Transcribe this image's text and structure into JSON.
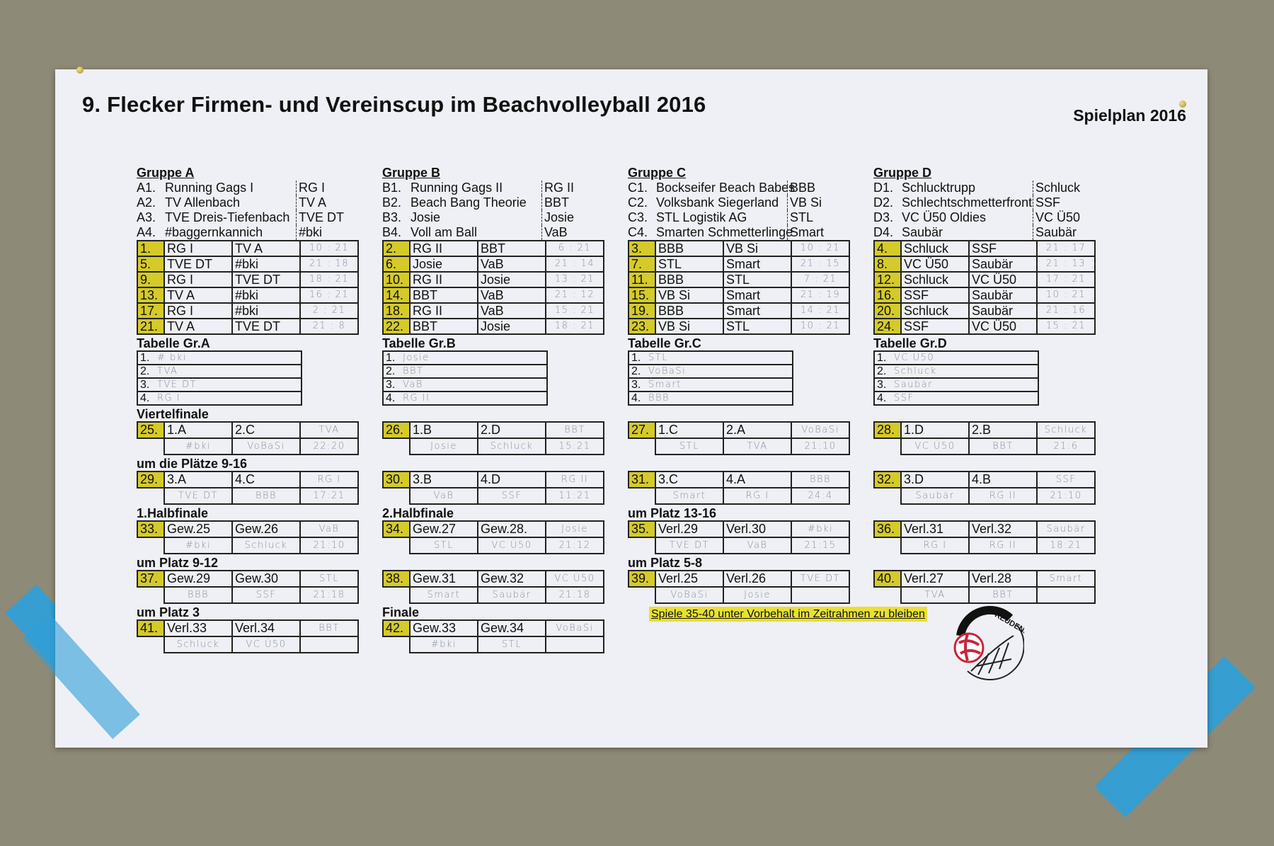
{
  "title": "9. Flecker Firmen- und Vereinscup im Beachvolleyball 2016",
  "subtitle": "Spielplan 2016",
  "colors": {
    "highlight": "#d4ca2a",
    "tape": "#2f9fd8",
    "background": "#8e8a78"
  },
  "groups": [
    {
      "name": "Gruppe A",
      "teams": [
        {
          "code": "A1.",
          "name": "Running Gags I",
          "short": "RG I"
        },
        {
          "code": "A2.",
          "name": "TV Allenbach",
          "short": "TV A"
        },
        {
          "code": "A3.",
          "name": "TVE Dreis-Tiefenbach",
          "short": "TVE DT"
        },
        {
          "code": "A4.",
          "name": "#baggernkannich",
          "short": "#bki"
        }
      ],
      "matches": [
        {
          "no": "1.",
          "t1": "RG I",
          "t2": "TV A",
          "score": "10 : 21"
        },
        {
          "no": "5.",
          "t1": "TVE DT",
          "t2": "#bki",
          "score": "21 : 18"
        },
        {
          "no": "9.",
          "t1": "RG I",
          "t2": "TVE DT",
          "score": "18 : 21"
        },
        {
          "no": "13.",
          "t1": "TV A",
          "t2": "#bki",
          "score": "16 : 21"
        },
        {
          "no": "17.",
          "t1": "RG I",
          "t2": "#bki",
          "score": "2 : 21"
        },
        {
          "no": "21.",
          "t1": "TV A",
          "t2": "TVE DT",
          "score": "21 : 8"
        }
      ],
      "table_title": "Tabelle Gr.A",
      "standings": [
        {
          "rank": "1.",
          "team": "# bki"
        },
        {
          "rank": "2.",
          "team": "TVA"
        },
        {
          "rank": "3.",
          "team": "TVE DT"
        },
        {
          "rank": "4.",
          "team": "RG I"
        }
      ]
    },
    {
      "name": "Gruppe B",
      "teams": [
        {
          "code": "B1.",
          "name": "Running Gags II",
          "short": "RG II"
        },
        {
          "code": "B2.",
          "name": "Beach Bang Theorie",
          "short": "BBT"
        },
        {
          "code": "B3.",
          "name": "Josie",
          "short": "Josie"
        },
        {
          "code": "B4.",
          "name": "Voll am Ball",
          "short": "VaB"
        }
      ],
      "matches": [
        {
          "no": "2.",
          "t1": "RG II",
          "t2": "BBT",
          "score": "6 : 21"
        },
        {
          "no": "6.",
          "t1": "Josie",
          "t2": "VaB",
          "score": "21 : 14"
        },
        {
          "no": "10.",
          "t1": "RG II",
          "t2": "Josie",
          "score": "13 : 21"
        },
        {
          "no": "14.",
          "t1": "BBT",
          "t2": "VaB",
          "score": "21 : 12"
        },
        {
          "no": "18.",
          "t1": "RG II",
          "t2": "VaB",
          "score": "15 : 21"
        },
        {
          "no": "22.",
          "t1": "BBT",
          "t2": "Josie",
          "score": "18 : 21"
        }
      ],
      "table_title": "Tabelle Gr.B",
      "standings": [
        {
          "rank": "1.",
          "team": "Josie"
        },
        {
          "rank": "2.",
          "team": "BBT"
        },
        {
          "rank": "3.",
          "team": "VaB"
        },
        {
          "rank": "4.",
          "team": "RG II"
        }
      ]
    },
    {
      "name": "Gruppe C",
      "teams": [
        {
          "code": "C1.",
          "name": "Bockseifer Beach Babes",
          "short": "BBB"
        },
        {
          "code": "C2.",
          "name": "Volksbank Siegerland",
          "short": "VB Si"
        },
        {
          "code": "C3.",
          "name": "STL Logistik AG",
          "short": "STL"
        },
        {
          "code": "C4.",
          "name": "Smarten Schmetterlinge",
          "short": "Smart"
        }
      ],
      "matches": [
        {
          "no": "3.",
          "t1": "BBB",
          "t2": "VB Si",
          "score": "10 : 21"
        },
        {
          "no": "7.",
          "t1": "STL",
          "t2": "Smart",
          "score": "21 : 15"
        },
        {
          "no": "11.",
          "t1": "BBB",
          "t2": "STL",
          "score": "7 : 21"
        },
        {
          "no": "15.",
          "t1": "VB Si",
          "t2": "Smart",
          "score": "21 : 19"
        },
        {
          "no": "19.",
          "t1": "BBB",
          "t2": "Smart",
          "score": "14 : 21"
        },
        {
          "no": "23.",
          "t1": "VB Si",
          "t2": "STL",
          "score": "10 : 21"
        }
      ],
      "table_title": "Tabelle Gr.C",
      "standings": [
        {
          "rank": "1.",
          "team": "STL"
        },
        {
          "rank": "2.",
          "team": "VoBaSi"
        },
        {
          "rank": "3.",
          "team": "Smart"
        },
        {
          "rank": "4.",
          "team": "BBB"
        }
      ]
    },
    {
      "name": "Gruppe D",
      "teams": [
        {
          "code": "D1.",
          "name": "Schlucktrupp",
          "short": "Schluck"
        },
        {
          "code": "D2.",
          "name": "Schlechtschmetterfront",
          "short": "SSF"
        },
        {
          "code": "D3.",
          "name": "VC Ü50 Oldies",
          "short": "VC Ü50"
        },
        {
          "code": "D4.",
          "name": "Saubär",
          "short": "Saubär"
        }
      ],
      "matches": [
        {
          "no": "4.",
          "t1": "Schluck",
          "t2": "SSF",
          "score": "21 : 17"
        },
        {
          "no": "8.",
          "t1": "VC Ü50",
          "t2": "Saubär",
          "score": "21 : 13"
        },
        {
          "no": "12.",
          "t1": "Schluck",
          "t2": "VC Ü50",
          "score": "17 : 21"
        },
        {
          "no": "16.",
          "t1": "SSF",
          "t2": "Saubär",
          "score": "10 : 21"
        },
        {
          "no": "20.",
          "t1": "Schluck",
          "t2": "Saubär",
          "score": "21 : 16"
        },
        {
          "no": "24.",
          "t1": "SSF",
          "t2": "VC Ü50",
          "score": "15 : 21"
        }
      ],
      "table_title": "Tabelle Gr.D",
      "standings": [
        {
          "rank": "1.",
          "team": "VC Ü50"
        },
        {
          "rank": "2.",
          "team": "Schluck"
        },
        {
          "rank": "3.",
          "team": "Saubär"
        },
        {
          "rank": "4.",
          "team": "SSF"
        }
      ]
    }
  ],
  "knockout_rows": [
    {
      "matches": [
        {
          "label": "Viertelfinale",
          "no": "25.",
          "slot1": "1.A",
          "slot2": "2.C",
          "winner": "TVA",
          "team1": "#bki",
          "team2": "VoBaSi",
          "score": "22:20"
        },
        {
          "label": "",
          "no": "26.",
          "slot1": "1.B",
          "slot2": "2.D",
          "winner": "BBT",
          "team1": "Josie",
          "team2": "Schluck",
          "score": "15:21"
        },
        {
          "label": "",
          "no": "27.",
          "slot1": "1.C",
          "slot2": "2.A",
          "winner": "VoBaSi",
          "team1": "STL",
          "team2": "TVA",
          "score": "21:10"
        },
        {
          "label": "",
          "no": "28.",
          "slot1": "1.D",
          "slot2": "2.B",
          "winner": "Schluck",
          "team1": "VC Ü50",
          "team2": "BBT",
          "score": "21:6"
        }
      ]
    },
    {
      "matches": [
        {
          "label": "um die Plätze 9-16",
          "no": "29.",
          "slot1": "3.A",
          "slot2": "4.C",
          "winner": "RG I",
          "team1": "TVE DT",
          "team2": "BBB",
          "score": "17:21"
        },
        {
          "label": "",
          "no": "30.",
          "slot1": "3.B",
          "slot2": "4.D",
          "winner": "RG II",
          "team1": "VaB",
          "team2": "SSF",
          "score": "11:21"
        },
        {
          "label": "",
          "no": "31.",
          "slot1": "3.C",
          "slot2": "4.A",
          "winner": "BBB",
          "team1": "Smart",
          "team2": "RG I",
          "score": "24:4"
        },
        {
          "label": "",
          "no": "32.",
          "slot1": "3.D",
          "slot2": "4.B",
          "winner": "SSF",
          "team1": "Saubär",
          "team2": "RG II",
          "score": "21:10"
        }
      ]
    },
    {
      "matches": [
        {
          "label": "1.Halbfinale",
          "no": "33.",
          "slot1": "Gew.25",
          "slot2": "Gew.26",
          "winner": "VaB",
          "team1": "#bki",
          "team2": "Schluck",
          "score": "21:10"
        },
        {
          "label": "2.Halbfinale",
          "no": "34.",
          "slot1": "Gew.27",
          "slot2": "Gew.28.",
          "winner": "Josie",
          "team1": "STL",
          "team2": "VC Ü50",
          "score": "21:12"
        },
        {
          "label": "um Platz 13-16",
          "no": "35.",
          "slot1": "Verl.29",
          "slot2": "Verl.30",
          "winner": "#bki",
          "team1": "TVE DT",
          "team2": "VaB",
          "score": "21:15"
        },
        {
          "label": "",
          "no": "36.",
          "slot1": "Verl.31",
          "slot2": "Verl.32",
          "winner": "Saubär",
          "team1": "RG I",
          "team2": "RG II",
          "score": "18:21"
        }
      ]
    },
    {
      "matches": [
        {
          "label": "um Platz 9-12",
          "no": "37.",
          "slot1": "Gew.29",
          "slot2": "Gew.30",
          "winner": "STL",
          "team1": "BBB",
          "team2": "SSF",
          "score": "21:18"
        },
        {
          "label": "",
          "no": "38.",
          "slot1": "Gew.31",
          "slot2": "Gew.32",
          "winner": "VC Ü50",
          "team1": "Smart",
          "team2": "Saubär",
          "score": "21:18"
        },
        {
          "label": "um Platz 5-8",
          "no": "39.",
          "slot1": "Verl.25",
          "slot2": "Verl.26",
          "winner": "TVE DT",
          "team1": "VoBaSi",
          "team2": "Josie",
          "score": ""
        },
        {
          "label": "",
          "no": "40.",
          "slot1": "Verl.27",
          "slot2": "Verl.28",
          "winner": "Smart",
          "team1": "TVA",
          "team2": "BBT",
          "score": ""
        }
      ]
    },
    {
      "matches": [
        {
          "label": "um Platz 3",
          "no": "41.",
          "slot1": "Verl.33",
          "slot2": "Verl.34",
          "winner": "BBT",
          "team1": "Schluck",
          "team2": "VC Ü50",
          "score": ""
        },
        {
          "label": "Finale",
          "no": "42.",
          "slot1": "Gew.33",
          "slot2": "Gew.34",
          "winner": "VoBaSi",
          "team1": "#bki",
          "team2": "STL",
          "score": ""
        }
      ]
    }
  ],
  "note": "Spiele 35-40 unter Vorbehalt im Zeitrahmen zu bleiben",
  "logo": {
    "text": "VC '73 FREUDENBERG",
    "icon": "volleyball-net-logo"
  }
}
